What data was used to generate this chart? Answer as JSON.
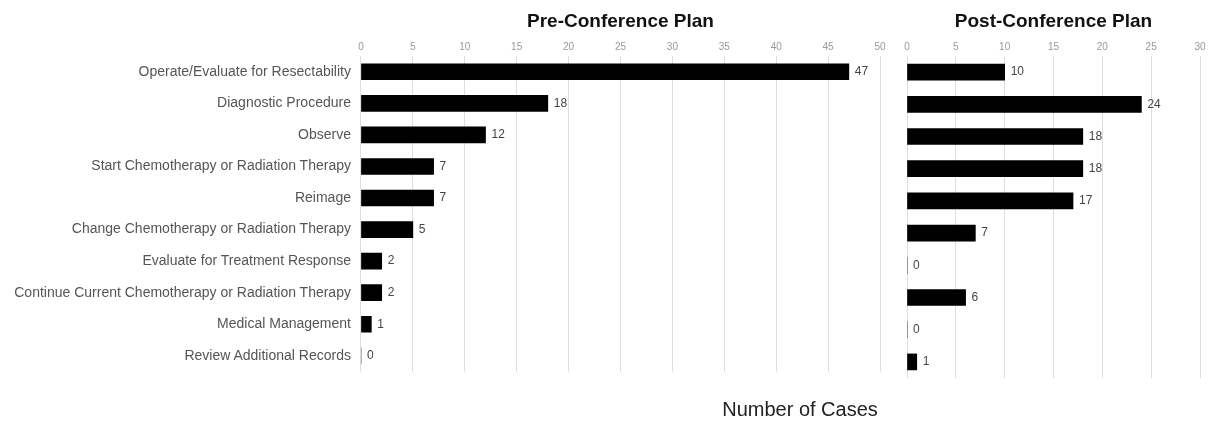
{
  "chart_data": [
    {
      "type": "bar",
      "orientation": "horizontal",
      "title": "Pre-Conference Plan",
      "xlabel": "Number of Cases",
      "categories": [
        "Operate/Evaluate for Resectability",
        "Diagnostic Procedure",
        "Observe",
        "Start Chemotherapy or Radiation Therapy",
        "Reimage",
        "Change Chemotherapy or Radiation Therapy",
        "Evaluate for Treatment Response",
        "Continue Current Chemotherapy or Radiation Therapy",
        "Medical Management",
        "Review Additional Records"
      ],
      "values": [
        47,
        18,
        12,
        7,
        7,
        5,
        2,
        2,
        1,
        0
      ],
      "color": "#000000",
      "xlim": [
        0,
        50
      ],
      "xticks": [
        0,
        5,
        10,
        15,
        20,
        25,
        30,
        35,
        40,
        45,
        50
      ],
      "grid": "x",
      "data_labels": true
    },
    {
      "type": "bar",
      "orientation": "horizontal",
      "title": "Post-Conference Plan",
      "categories": [
        null,
        null,
        null,
        null,
        null,
        null,
        null,
        null,
        null,
        null
      ],
      "values": [
        10,
        24,
        18,
        18,
        17,
        7,
        0,
        6,
        0,
        1
      ],
      "color": "#000000",
      "xlim": [
        0,
        30
      ],
      "xticks": [
        0,
        5,
        10,
        15,
        20,
        25,
        30
      ],
      "grid": "x",
      "data_labels": true,
      "tick_labels": "x"
    }
  ]
}
